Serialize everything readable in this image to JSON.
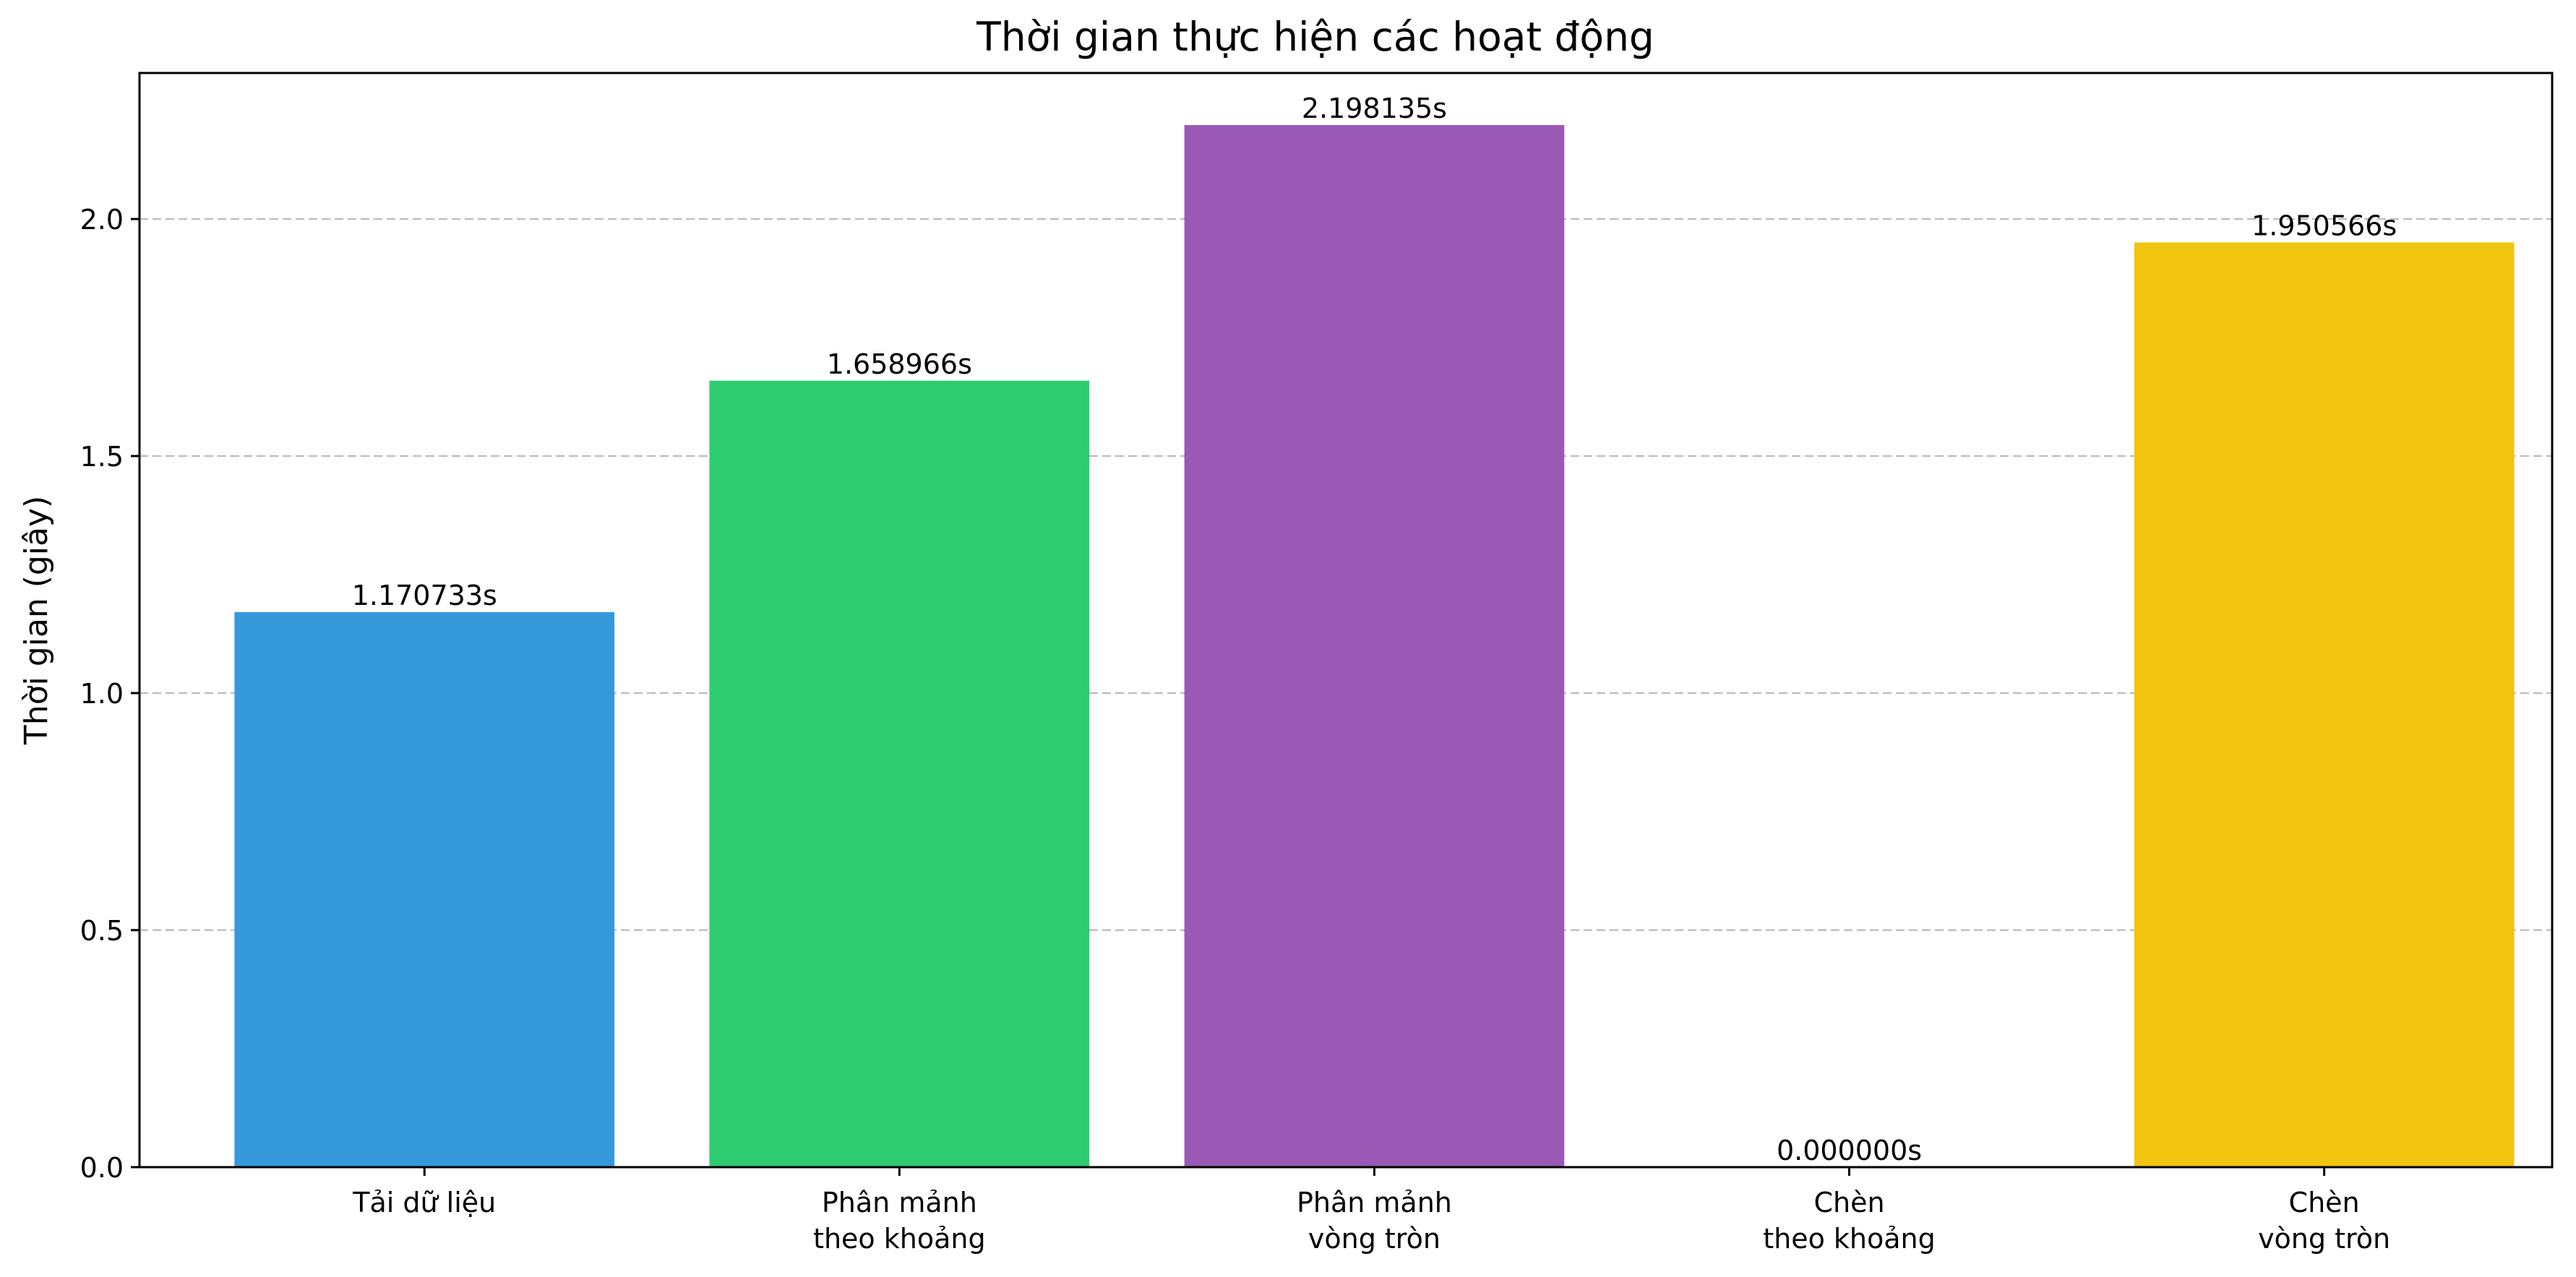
{
  "chart_data": {
    "type": "bar",
    "title": "Thời gian thực hiện các hoạt động",
    "xlabel": "",
    "ylabel": "Thời gian (giây)",
    "ylim": [
      0,
      2.308
    ],
    "yticks": [
      "0.0",
      "0.5",
      "1.0",
      "1.5",
      "2.0"
    ],
    "grid": "y-dashed",
    "categories": [
      [
        "Tải dữ liệu"
      ],
      [
        "Phân mảnh",
        "theo khoảng"
      ],
      [
        "Phân mảnh",
        "vòng tròn"
      ],
      [
        "Chèn",
        "theo khoảng"
      ],
      [
        "Chèn",
        "vòng tròn"
      ]
    ],
    "values": [
      1.170733,
      1.658966,
      2.198135,
      0.0,
      1.950566
    ],
    "value_labels": [
      "1.170733s",
      "1.658966s",
      "2.198135s",
      "0.000000s",
      "1.950566s"
    ],
    "colors": [
      "#3498db",
      "#2ecc71",
      "#9b59b6",
      "#e74c3c",
      "#f1c40f"
    ]
  }
}
